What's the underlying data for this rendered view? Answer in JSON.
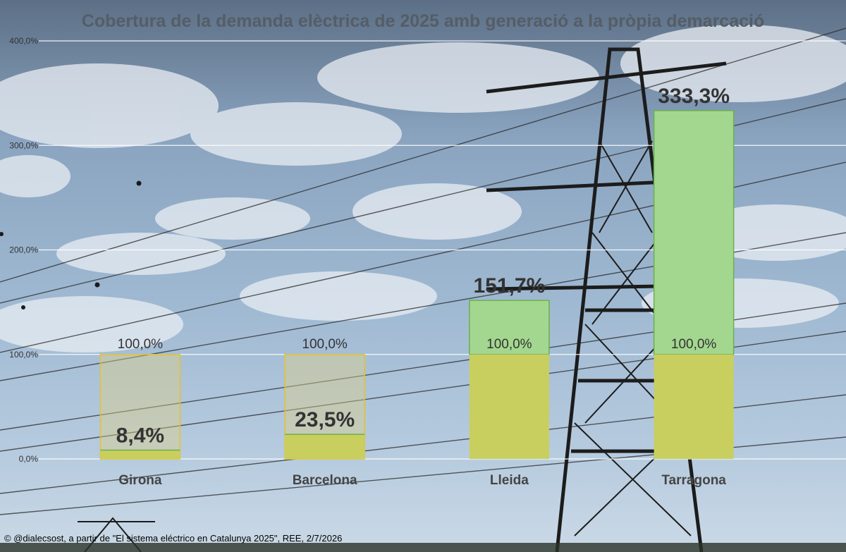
{
  "chart_data": {
    "type": "bar",
    "title": "Cobertura de la demanda elèctrica de 2025 amb generació a la pròpia demarcació",
    "categories": [
      "Girona",
      "Barcelona",
      "Lleida",
      "Tarragona"
    ],
    "values": [
      8.4,
      23.5,
      151.7,
      333.3
    ],
    "value_labels": [
      "8,4%",
      "23,5%",
      "151,7%",
      "333,3%"
    ],
    "reference_value": 100.0,
    "reference_labels": [
      "100,0%",
      "100,0%",
      "100,0%",
      "100,0%"
    ],
    "ylim": [
      0,
      400
    ],
    "yticks": [
      0,
      100,
      200,
      300,
      400
    ],
    "ytick_labels": [
      "0,0%",
      "100,0%",
      "200,0%",
      "300,0%",
      "400,0%"
    ],
    "grid": true,
    "legend": "none",
    "colors": {
      "generation": "#c9cf5e",
      "excess": "#a3d78f",
      "excess_border": "#6bb04d",
      "deficit_border": "#e6c229",
      "deficit_fill": "#d9cf8a",
      "gridline": "#ffffff",
      "title": "#555d66"
    }
  },
  "footer": {
    "credit": "© @dialecsost, a partir de \"El sistema eléctrico en Catalunya 2025\", REE, 2/7/2026"
  }
}
